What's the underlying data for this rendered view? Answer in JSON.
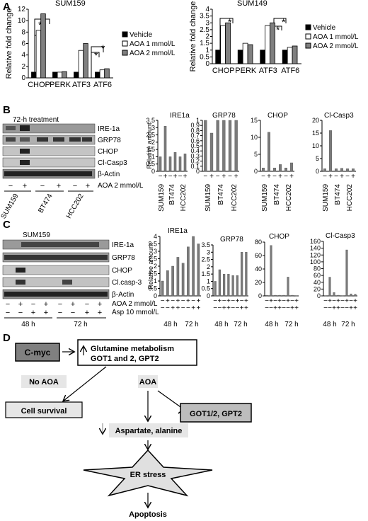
{
  "panels": {
    "A": "A",
    "B": "B",
    "C": "C",
    "D": "D"
  },
  "panelA": {
    "ylabel": "Relative fold change",
    "legend": [
      "Vehicle",
      "AOA 1 mmol/L",
      "AOA 2 mmol/L"
    ],
    "colors": [
      "#000000",
      "#ffffff",
      "#808080"
    ],
    "star": "*"
  },
  "chart_data": [
    {
      "type": "bar",
      "title": "SUM159",
      "categories": [
        "CHOP",
        "PERK",
        "ATF3",
        "ATF6"
      ],
      "ylim": [
        0,
        12
      ],
      "yticks": [
        0,
        2,
        4,
        6,
        8,
        10,
        12
      ],
      "series": [
        {
          "name": "Vehicle",
          "values": [
            1,
            1,
            1,
            1
          ]
        },
        {
          "name": "AOA 1 mmol/L",
          "values": [
            8.3,
            1.0,
            4.8,
            1.4
          ]
        },
        {
          "name": "AOA 2 mmol/L",
          "values": [
            11.2,
            1.1,
            6.0,
            1.6
          ]
        }
      ]
    },
    {
      "type": "bar",
      "title": "SUM149",
      "categories": [
        "CHOP",
        "PERK",
        "ATF3",
        "ATF6"
      ],
      "ylim": [
        0,
        4
      ],
      "yticks": [
        0,
        0.5,
        1,
        1.5,
        2,
        2.5,
        3,
        3.5,
        4
      ],
      "series": [
        {
          "name": "Vehicle",
          "values": [
            1,
            1,
            1,
            1
          ]
        },
        {
          "name": "AOA 1 mmol/L",
          "values": [
            2.8,
            1.5,
            2.8,
            1.2
          ]
        },
        {
          "name": "AOA 2 mmol/L",
          "values": [
            3.0,
            1.4,
            3.0,
            1.3
          ]
        }
      ]
    },
    {
      "type": "bar",
      "title": "IRE1a",
      "ylabel": "Relative amount",
      "categories": [
        "−",
        "+",
        "−",
        "+",
        "−",
        "+"
      ],
      "ylim": [
        0,
        3.5
      ],
      "yticks": [
        0,
        0.5,
        1,
        1.5,
        2,
        2.5,
        3,
        3.5
      ],
      "values": [
        1,
        3.1,
        1,
        1.3,
        1,
        1.2
      ]
    },
    {
      "type": "bar",
      "title": "GRP78",
      "categories": [
        "−",
        "+",
        "−",
        "+",
        "−",
        "+"
      ],
      "ylim": [
        0,
        1
      ],
      "yticks": [
        0,
        0.1,
        0.2,
        0.3,
        0.4,
        0.5,
        0.6,
        0.7,
        0.8,
        0.9,
        1
      ],
      "values": [
        1,
        0.75,
        1,
        1,
        1,
        1
      ]
    },
    {
      "type": "bar",
      "title": "CHOP",
      "categories": [
        "−",
        "+",
        "−",
        "+",
        "−",
        "+"
      ],
      "ylim": [
        0,
        15
      ],
      "yticks": [
        0,
        5,
        10,
        15
      ],
      "values": [
        1,
        11.5,
        1,
        2,
        1,
        2.5
      ]
    },
    {
      "type": "bar",
      "title": "Cl-Casp3",
      "categories": [
        "−",
        "+",
        "−",
        "+",
        "−",
        "+"
      ],
      "ylim": [
        0,
        20
      ],
      "yticks": [
        0,
        5,
        10,
        15,
        20
      ],
      "values": [
        1,
        16,
        1,
        1.2,
        1,
        1
      ]
    },
    {
      "type": "bar",
      "title": "IRE1a",
      "ylabel": "Relative amount",
      "categories": [
        "−",
        "+",
        "−",
        "+",
        "−",
        "+",
        "−",
        "+"
      ],
      "ylim": [
        0,
        4
      ],
      "yticks": [
        0,
        0.5,
        1,
        1.5,
        2,
        2.5,
        3,
        3.5,
        4
      ],
      "values": [
        1,
        1.7,
        2.0,
        2.6,
        2.2,
        3.3,
        4.0,
        3.5
      ]
    },
    {
      "type": "bar",
      "title": "GRP78",
      "categories": [
        "−",
        "+",
        "−",
        "+",
        "−",
        "+",
        "−",
        "+"
      ],
      "ylim": [
        0,
        3.5
      ],
      "yticks": [
        0,
        0.5,
        1,
        1.5,
        2,
        2.5,
        3,
        3.5
      ],
      "values": [
        1,
        1.8,
        1.5,
        1.5,
        1.4,
        1.4,
        3.0,
        3.0
      ]
    },
    {
      "type": "bar",
      "title": "CHOP",
      "categories": [
        "−",
        "+",
        "−",
        "+",
        "−",
        "+",
        "−",
        "+"
      ],
      "ylim": [
        0,
        80
      ],
      "yticks": [
        0,
        20,
        40,
        60,
        80
      ],
      "values": [
        1,
        75,
        1,
        1,
        1,
        28,
        1,
        0.5
      ]
    },
    {
      "type": "bar",
      "title": "Cl-Casp3",
      "categories": [
        "−",
        "+",
        "−",
        "+",
        "−",
        "+",
        "−",
        "+"
      ],
      "ylim": [
        0,
        160
      ],
      "yticks": [
        0,
        20,
        40,
        60,
        80,
        100,
        120,
        140,
        160
      ],
      "values": [
        1,
        55,
        10,
        2,
        1,
        135,
        6,
        5
      ]
    }
  ],
  "panelB": {
    "header": "72-h treatment",
    "bands": [
      "IRE-1a",
      "GRP78",
      "CHOP",
      "Cl-Casp3",
      "β-Actin"
    ],
    "signs": [
      "−",
      "+",
      "−",
      "+",
      "−",
      "+"
    ],
    "treatment": "AOA 2 mmol/L",
    "cells": [
      "SUM159",
      "BT474",
      "HCC202"
    ]
  },
  "panelC": {
    "header": "SUM159",
    "bands": [
      "IRE-1a",
      "GRP78",
      "CHOP",
      "Cl.casp-3",
      "β-Actin"
    ],
    "aoa_signs": [
      "−",
      "+",
      "−",
      "+",
      "−",
      "+",
      "−",
      "+"
    ],
    "asp_signs": [
      "−",
      "−",
      "+",
      "+",
      "−",
      "−",
      "+",
      "+"
    ],
    "aoa_label": "AOA 2 mmol/L",
    "asp_label": "Asp 10 mmol/L",
    "times": [
      "48 h",
      "72 h"
    ]
  },
  "panelD": {
    "cmyc": "C-myc",
    "glutamine_line1": "Glutamine metabolism",
    "glutamine_line2": "GOT1 and 2, GPT2",
    "no_aoa": "No AOA",
    "aoa": "AOA",
    "cell_survival": "Cell survival",
    "got": "GOT1/2, GPT2",
    "aspartate": "Aspartate, alanine",
    "er_stress": "ER stress",
    "apoptosis": "Apoptosis"
  }
}
